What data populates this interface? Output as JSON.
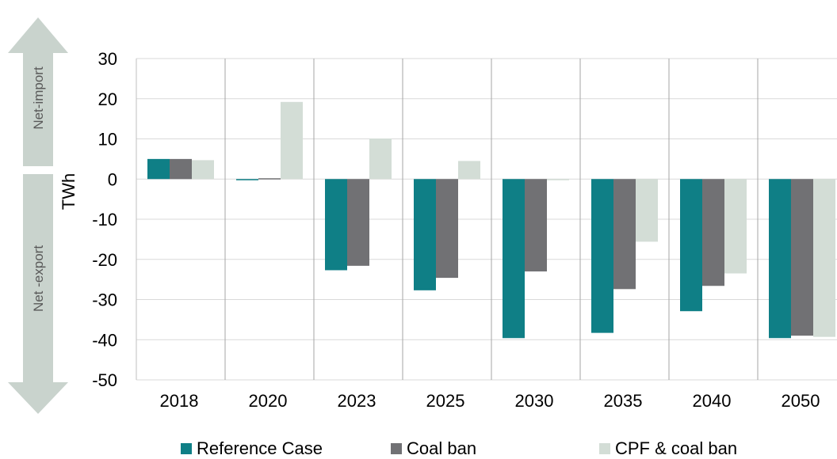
{
  "header": {
    "title": ""
  },
  "side_arrows": {
    "up_label": "Net-import",
    "down_label": "Net -export",
    "color": "#c9d3cd",
    "text_color": "#595959"
  },
  "colors": {
    "gridline": "#d9d9d9",
    "divider": "#a6a6a6",
    "axis": "#bfbfbf"
  },
  "chart_data": {
    "type": "bar",
    "title": "",
    "xlabel": "",
    "ylabel": "TWh",
    "ylim": [
      -50,
      30
    ],
    "yticks": [
      30,
      20,
      10,
      0,
      -10,
      -20,
      -30,
      -40,
      -50
    ],
    "grid": true,
    "legend_position": "bottom",
    "categories": [
      "2018",
      "2020",
      "2023",
      "2025",
      "2030",
      "2035",
      "2040",
      "2050"
    ],
    "series": [
      {
        "name": "Reference Case",
        "color": "#0f7f86",
        "values": [
          5,
          -0.3,
          -22.7,
          -27.7,
          -39.6,
          -38.3,
          -32.9,
          -39.6
        ]
      },
      {
        "name": "Coal ban",
        "color": "#717174",
        "values": [
          5,
          0.2,
          -21.6,
          -24.6,
          -23,
          -27.4,
          -26.6,
          -39
        ]
      },
      {
        "name": "CPF & coal ban",
        "color": "#d3ddd6",
        "values": [
          4.7,
          19.2,
          10.1,
          4.5,
          -0.2,
          -15.6,
          -23.5,
          -39.3
        ]
      }
    ]
  }
}
